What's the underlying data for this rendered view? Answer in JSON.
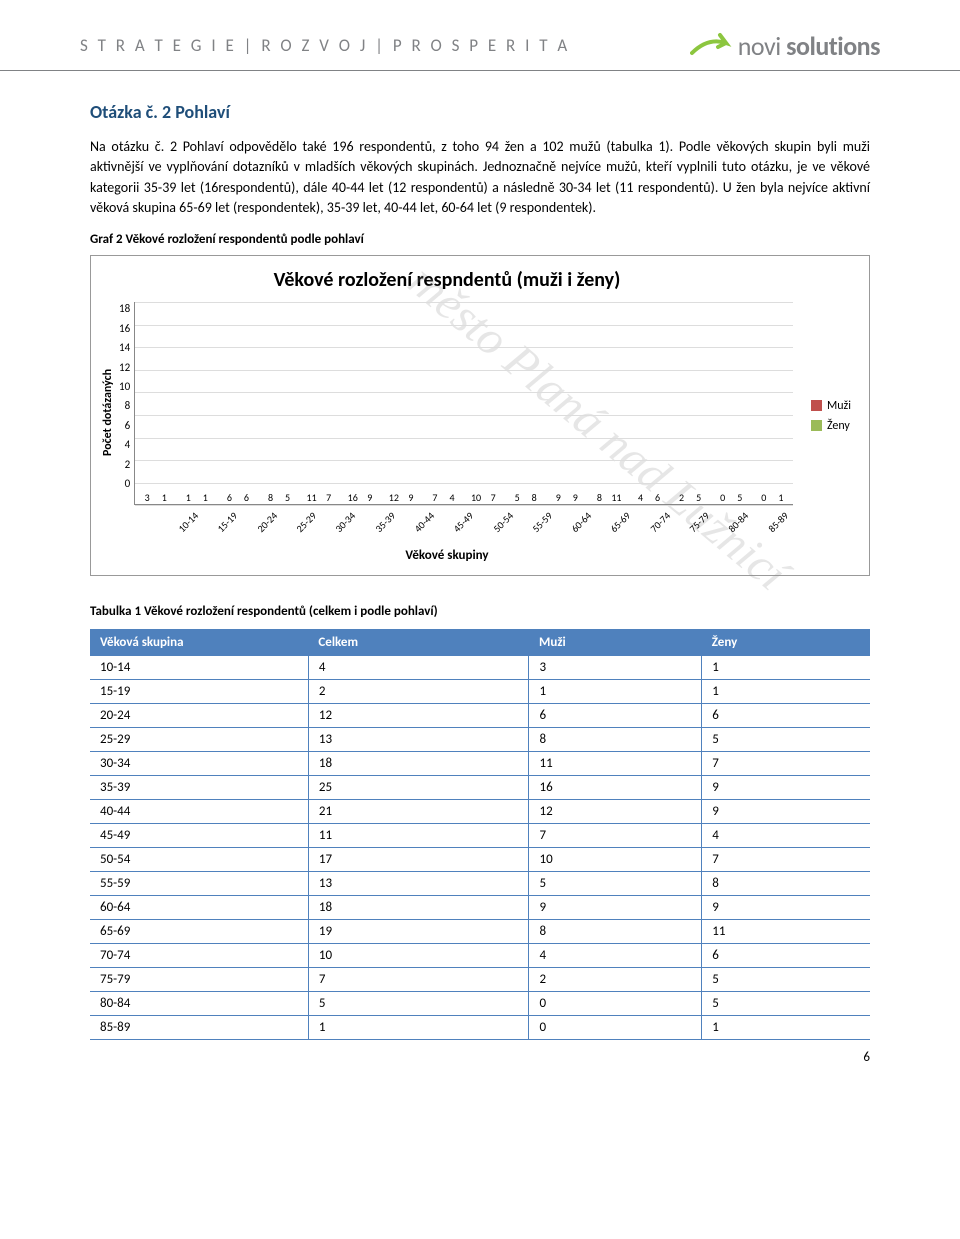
{
  "header": {
    "tagline_left": "S T R A T E G I E   |   R O Z V O J   |   P R O S P E R I T A",
    "logo_text1": "novi ",
    "logo_text2": "solutions"
  },
  "watermark": "město Planá nad Lužnicí",
  "question": {
    "title": "Otázka č. 2 Pohlaví",
    "para": "Na otázku č. 2 Pohlaví odpovědělo také 196 respondentů, z toho 94 žen a 102 mužů (tabulka 1). Podle věkových skupin byli muži aktivnější ve vyplňování dotazníků v mladších věkových skupinách. Jednoznačně nejvíce mužů, kteří vyplnili tuto otázku, je ve věkové kategorii 35-39 let (16respondentů), dále 40-44 let (12 respondentů) a následně 30-34 let (11 respondentů). U žen byla nejvíce aktivní věková skupina 65-69 let (respondentek), 35-39 let, 40-44 let, 60-64 let (9 respondentek)."
  },
  "chart": {
    "caption": "Graf 2 Věkové rozložení respondentů podle pohlaví",
    "title": "Věkové rozložení respndentů (muži i ženy)",
    "y_axis_label": "Počet dotázaných",
    "x_axis_label": "Věkové skupiny",
    "y_max": 18,
    "y_ticks": [
      "18",
      "16",
      "14",
      "12",
      "10",
      "8",
      "6",
      "4",
      "2",
      "0"
    ],
    "categories": [
      "10-14",
      "15-19",
      "20-24",
      "25-29",
      "30-34",
      "35-39",
      "40-44",
      "45-49",
      "50-54",
      "55-59",
      "60-64",
      "65-69",
      "70-74",
      "75-79",
      "80-84",
      "85-89"
    ],
    "series_m": [
      3,
      1,
      6,
      8,
      11,
      16,
      12,
      7,
      10,
      5,
      9,
      8,
      4,
      2,
      0,
      0
    ],
    "series_z": [
      1,
      1,
      6,
      5,
      7,
      9,
      9,
      4,
      7,
      8,
      9,
      11,
      6,
      5,
      5,
      1
    ],
    "color_m": "#c0504d",
    "color_z": "#9bbb59",
    "legend_m": "Muži",
    "legend_z": "Ženy"
  },
  "table": {
    "caption": "Tabulka 1 Věkové rozložení respondentů (celkem i podle pohlaví)",
    "columns": [
      "Věková skupina",
      "Celkem",
      "Muži",
      "Ženy"
    ],
    "rows": [
      [
        "10-14",
        "4",
        "3",
        "1"
      ],
      [
        "15-19",
        "2",
        "1",
        "1"
      ],
      [
        "20-24",
        "12",
        "6",
        "6"
      ],
      [
        "25-29",
        "13",
        "8",
        "5"
      ],
      [
        "30-34",
        "18",
        "11",
        "7"
      ],
      [
        "35-39",
        "25",
        "16",
        "9"
      ],
      [
        "40-44",
        "21",
        "12",
        "9"
      ],
      [
        "45-49",
        "11",
        "7",
        "4"
      ],
      [
        "50-54",
        "17",
        "10",
        "7"
      ],
      [
        "55-59",
        "13",
        "5",
        "8"
      ],
      [
        "60-64",
        "18",
        "9",
        "9"
      ],
      [
        "65-69",
        "19",
        "8",
        "11"
      ],
      [
        "70-74",
        "10",
        "4",
        "6"
      ],
      [
        "75-79",
        "7",
        "2",
        "5"
      ],
      [
        "80-84",
        "5",
        "0",
        "5"
      ],
      [
        "85-89",
        "1",
        "0",
        "1"
      ]
    ]
  },
  "page_number": "6"
}
